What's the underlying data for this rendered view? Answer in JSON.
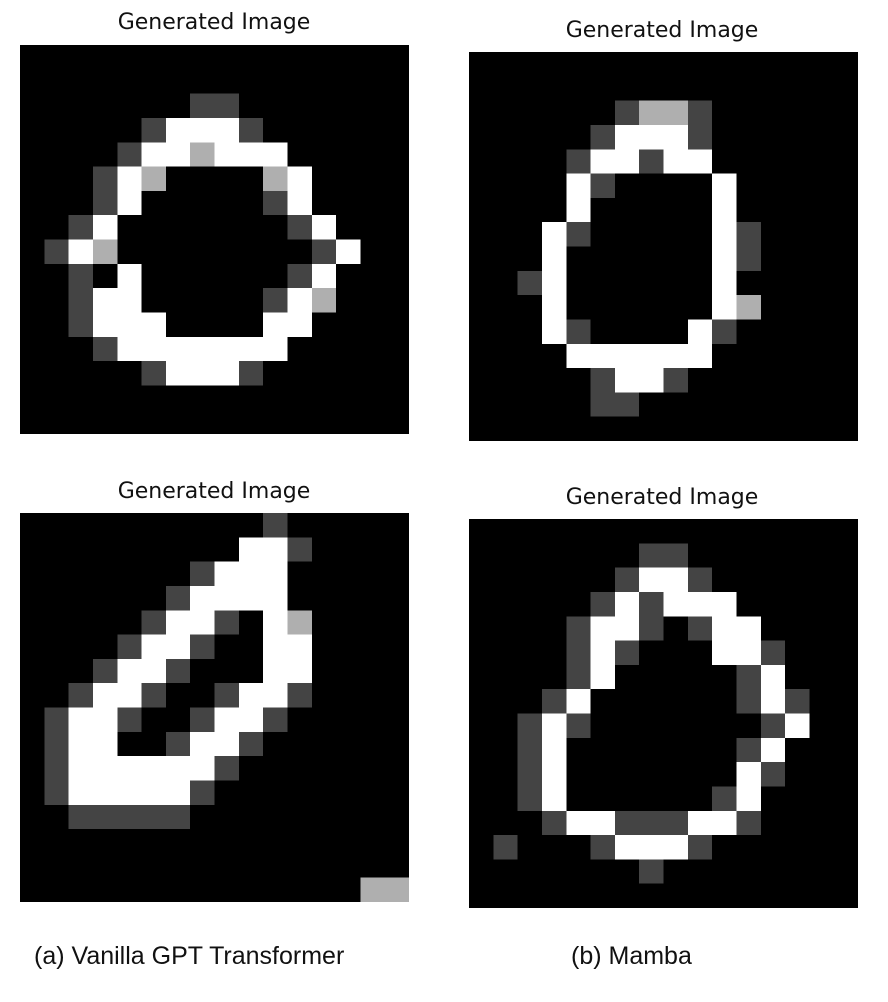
{
  "panels": [
    {
      "title": "Generated Image",
      "rows": [
        "0000000000000000",
        "0000000000000000",
        "0000000220000000",
        "0000029992000000",
        "0000299699900000",
        "0002960000690000",
        "0002900000290000",
        "0029000000029000",
        "0296000000002900",
        "0020900000029000",
        "0029900000296000",
        "0029990000990000",
        "0002999999900000",
        "0000029992000000",
        "0000000000000000",
        "0000000000000000"
      ]
    },
    {
      "title": "Generated Image",
      "rows": [
        "0000000000000000",
        "0000000000000000",
        "0000002662000000",
        "0000029992000000",
        "0000299299000000",
        "0000920000900000",
        "0000900000900000",
        "0009200000920000",
        "0009000000920000",
        "0029000000900000",
        "0009000000960000",
        "0009200009200000",
        "0000999999000000",
        "0000029920000000",
        "0000022000000000",
        "0000000000000000"
      ]
    },
    {
      "title": "Generated Image",
      "rows": [
        "0000000000200000",
        "0000000009920000",
        "0000000299900000",
        "0000002999900000",
        "0000029920960000",
        "0000299200990000",
        "0002992000990000",
        "0029920029920000",
        "0299200299200000",
        "0299002992000000",
        "0299999920000000",
        "0299999200000000",
        "0022222000000000",
        "0000000000000000",
        "0000000000000000",
        "0000000000000066"
      ]
    },
    {
      "title": "Generated Image",
      "rows": [
        "0000000000000000",
        "0000000220000000",
        "0000002992000000",
        "0000029299900000",
        "0000299202990000",
        "0000292000992000",
        "0000290000029000",
        "0002900000029200",
        "0029200000002900",
        "0029000000029000",
        "0029000000092000",
        "0029000000290000",
        "0002992229920000",
        "0200029992000000",
        "0000000200000000",
        "0000000000000000"
      ]
    }
  ],
  "captions": {
    "left": "(a) Vanilla GPT Transformer",
    "right": "(b) Mamba"
  }
}
